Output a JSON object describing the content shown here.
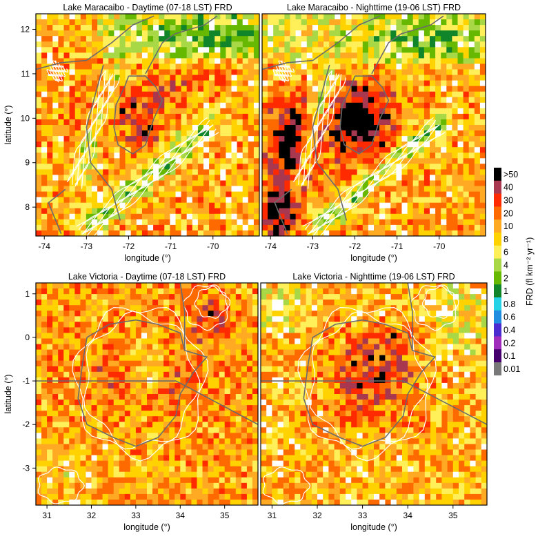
{
  "chart_data": [
    {
      "type": "heatmap",
      "title": "Lake Maracaibo - Daytime (07-18 LST) FRD",
      "xlabel": "longitude (°)",
      "ylabel": "latitude (°)",
      "xlim": [
        -74.2,
        -68.9
      ],
      "ylim": [
        7.35,
        12.35
      ],
      "xticks": [
        -74,
        -73,
        -72,
        -71,
        -70
      ],
      "yticks": [
        8,
        9,
        10,
        11,
        12
      ],
      "legend": "right",
      "overlay": "terrain elevation contours (white) and coastline/borders (gray)"
    },
    {
      "type": "heatmap",
      "title": "Lake Maracaibo - Nighttime (19-06 LST) FRD",
      "xlabel": "longitude (°)",
      "ylabel": "",
      "xlim": [
        -74.2,
        -68.9
      ],
      "ylim": [
        7.35,
        12.35
      ],
      "xticks": [
        -74,
        -73,
        -72,
        -71,
        -70
      ],
      "yticks": [],
      "legend": "right",
      "overlay": "terrain elevation contours (white) and coastline/borders (gray)"
    },
    {
      "type": "heatmap",
      "title": "Lake Victoria - Daytime (07-18 LST) FRD",
      "xlabel": "longitude (°)",
      "ylabel": "latitude (°)",
      "xlim": [
        30.75,
        35.75
      ],
      "ylim": [
        -3.85,
        1.25
      ],
      "xticks": [
        31,
        32,
        33,
        34,
        35
      ],
      "yticks": [
        -3,
        -2,
        -1,
        0,
        1
      ],
      "legend": "right",
      "overlay": "terrain elevation contours (white) and coastline/borders (gray)"
    },
    {
      "type": "heatmap",
      "title": "Lake Victoria - Nighttime (19-06 LST) FRD",
      "xlabel": "longitude (°)",
      "ylabel": "",
      "xlim": [
        30.75,
        35.75
      ],
      "ylim": [
        -3.85,
        1.25
      ],
      "xticks": [
        31,
        32,
        33,
        34,
        35
      ],
      "yticks": [],
      "legend": "right",
      "overlay": "terrain elevation contours (white) and coastline/borders (gray)"
    }
  ],
  "colorbar": {
    "title": "FRD (fl km⁻² yr⁻¹)",
    "labels": [
      ">50",
      "40",
      "30",
      "20",
      "10",
      "8",
      "6",
      "4",
      "2",
      "1",
      "0.8",
      "0.6",
      "0.4",
      "0.2",
      "0.1",
      "0.01"
    ],
    "colors": [
      "#000000",
      "#a8384f",
      "#ff2a00",
      "#ff6a00",
      "#ffaa22",
      "#ffd200",
      "#fff05a",
      "#a8d846",
      "#66b800",
      "#11852a",
      "#26d3e6",
      "#1f8ee0",
      "#4a2bd0",
      "#a02cbc",
      "#46006e",
      "#787878"
    ]
  }
}
